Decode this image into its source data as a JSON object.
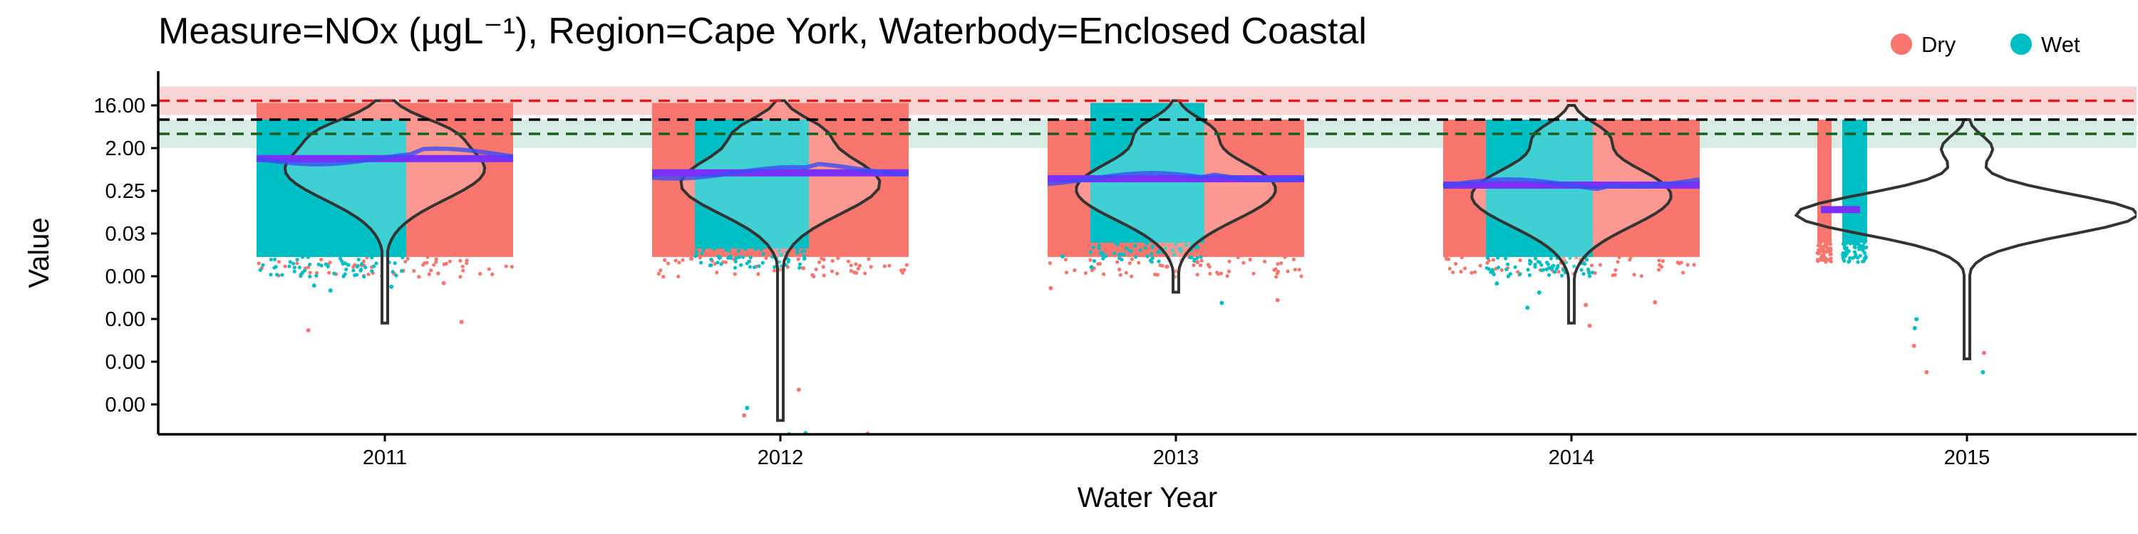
{
  "chart_data": {
    "type": "violin",
    "title": "Measure=NOx (µgL⁻¹), Region=Cape York, Waterbody=Enclosed Coastal",
    "xlabel": "Water Year",
    "ylabel": "Value",
    "x_categories": [
      "2011",
      "2012",
      "2013",
      "2014",
      "2015"
    ],
    "y_scale": "log",
    "y_tick_labels": [
      "16.00",
      "2.00",
      "0.25",
      "0.03",
      "0.00",
      "0.00",
      "0.00",
      "0.00"
    ],
    "y_tick_values": [
      16,
      2,
      0.25,
      0.03125,
      0.0039,
      0.00049,
      6.1e-05,
      7.6e-06
    ],
    "reference_lines": [
      {
        "value": 20,
        "color": "#e41a1c",
        "style": "dashed",
        "band": [
          10,
          40
        ],
        "band_color": "#f8d5d5"
      },
      {
        "value": 8,
        "color": "#000000",
        "style": "dashed"
      },
      {
        "value": 4,
        "color": "#1b5e20",
        "style": "dashed",
        "band": [
          2,
          8
        ],
        "band_color": "#d7ece4"
      }
    ],
    "legend": {
      "placement": "top-right",
      "entries": [
        {
          "label": "Dry",
          "color": "#f8766d"
        },
        {
          "label": "Wet",
          "color": "#00bfc4"
        }
      ]
    },
    "colors": {
      "dry": "#f8766d",
      "wet": "#00bfc4",
      "mean_line": "#7b2ff7",
      "smooth_line": "#3b4cf5",
      "violin_outline": "#333333"
    },
    "groups": [
      {
        "year": "2011",
        "mean": 1.2,
        "min": 0.0004,
        "max": 20,
        "wet_range": [
          0.01,
          8
        ],
        "dry_range": [
          0.01,
          18
        ]
      },
      {
        "year": "2012",
        "mean": 0.6,
        "min": 3.5e-06,
        "max": 20,
        "wet_range": [
          0.015,
          8
        ],
        "dry_range": [
          0.01,
          18
        ]
      },
      {
        "year": "2013",
        "mean": 0.45,
        "min": 0.0018,
        "max": 20,
        "wet_range": [
          0.02,
          18
        ],
        "dry_range": [
          0.01,
          8
        ]
      },
      {
        "year": "2014",
        "mean": 0.33,
        "min": 0.0004,
        "max": 16,
        "wet_range": [
          0.01,
          8
        ],
        "dry_range": [
          0.01,
          8
        ]
      },
      {
        "year": "2015",
        "mean": 0.1,
        "min": 7e-05,
        "max": 8,
        "wet_range": [
          0.02,
          8
        ],
        "dry_range": [
          0.02,
          8
        ]
      }
    ]
  }
}
